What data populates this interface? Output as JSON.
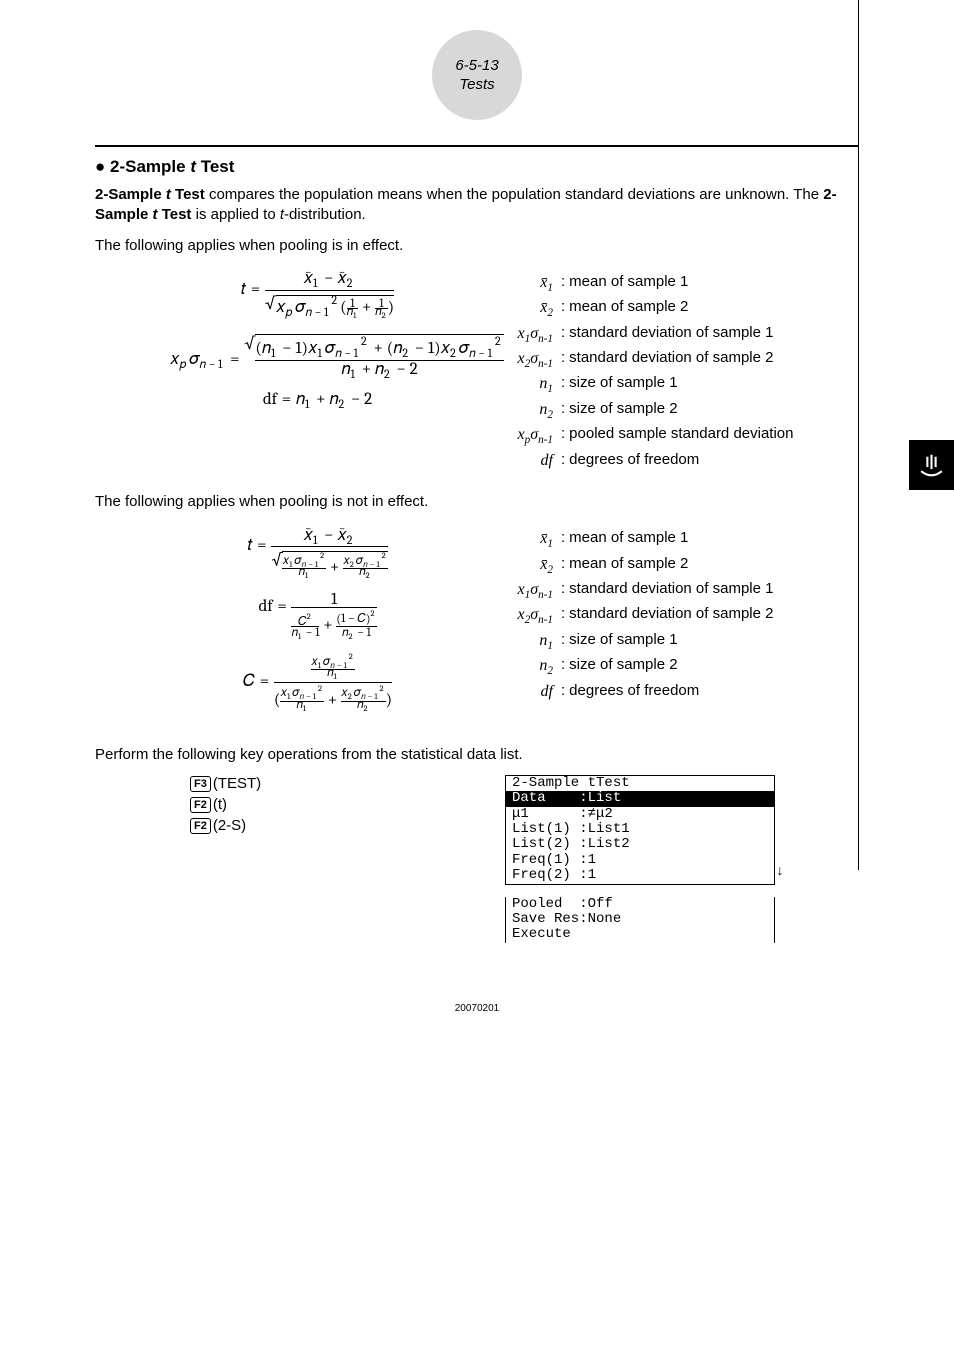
{
  "header": {
    "pageref": "6-5-13",
    "section": "Tests"
  },
  "title_prefix": "● ",
  "title_main": "2-Sample ",
  "title_ital": "t",
  "title_suffix": " Test",
  "intro_p1_a": "2-Sample ",
  "intro_p1_b": "t",
  "intro_p1_c": " Test",
  "intro_p1_d": " compares the population means when the population standard deviations are unknown. The ",
  "intro_p1_e": "2-Sample ",
  "intro_p1_f": "t",
  "intro_p1_g": " Test",
  "intro_p1_h": " is applied to ",
  "intro_p1_i": "t",
  "intro_p1_j": "-distribution.",
  "pool_on": "The following applies when pooling is in effect.",
  "pool_off": "The following applies when pooling is not in effect.",
  "legend1": [
    {
      "sym": "x̄<sub class='sub'>1</sub>",
      "text": "mean of sample 1"
    },
    {
      "sym": "x̄<sub class='sub'>2</sub>",
      "text": "mean of sample 2"
    },
    {
      "sym": "x<sub class='sub'>1</sub>σ<sub class='sub'>n-1</sub>",
      "text": "standard deviation of sample 1"
    },
    {
      "sym": "x<sub class='sub'>2</sub>σ<sub class='sub'>n-1</sub>",
      "text": "standard deviation of sample 2"
    },
    {
      "sym": "n<sub class='sub'>1</sub>",
      "text": "size of sample 1"
    },
    {
      "sym": "n<sub class='sub'>2</sub>",
      "text": "size of sample 2"
    },
    {
      "sym": "x<sub class='sub'>p</sub>σ<sub class='sub'>n-1</sub>",
      "text": "pooled sample standard deviation"
    },
    {
      "sym": "df",
      "text": "degrees of freedom"
    }
  ],
  "legend2": [
    {
      "sym": "x̄<sub class='sub'>1</sub>",
      "text": "mean of sample 1"
    },
    {
      "sym": "x̄<sub class='sub'>2</sub>",
      "text": "mean of sample 2"
    },
    {
      "sym": "x<sub class='sub'>1</sub>σ<sub class='sub'>n-1</sub>",
      "text": "standard deviation of sample 1"
    },
    {
      "sym": "x<sub class='sub'>2</sub>σ<sub class='sub'>n-1</sub>",
      "text": "standard deviation of sample 2"
    },
    {
      "sym": "n<sub class='sub'>1</sub>",
      "text": "size of sample 1"
    },
    {
      "sym": "n<sub class='sub'>2</sub>",
      "text": "size of sample 2"
    },
    {
      "sym": "df",
      "text": "degrees of freedom"
    }
  ],
  "keyops_intro": "Perform the following key operations from the statistical data list.",
  "keys": [
    {
      "box": "F3",
      "label": "(TEST)"
    },
    {
      "box": "F2",
      "label": "(t)"
    },
    {
      "box": "F2",
      "label": "(2-S)"
    }
  ],
  "calc": {
    "title": "2-Sample tTest",
    "data_label": "Data    :List",
    "lines": [
      "μ1      :≠μ2",
      "List(1) :List1",
      "List(2) :List2",
      "Freq(1) :1",
      "Freq(2) :1"
    ],
    "arrow": "↓",
    "lines2": [
      "Pooled  :Off",
      "Save Res:None",
      "Execute"
    ]
  },
  "footer": "20070201"
}
